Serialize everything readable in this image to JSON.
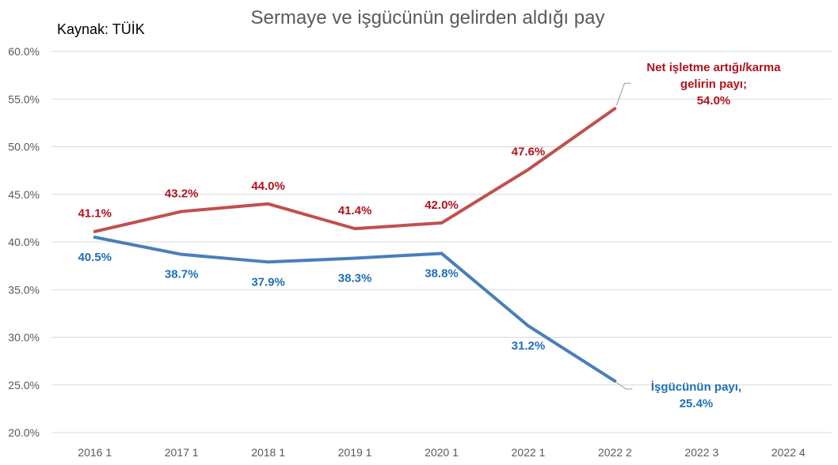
{
  "chart_data": {
    "type": "line",
    "title": "Sermaye ve işgücünün gelirden aldığı pay",
    "source": "Kaynak: TÜİK",
    "categories": [
      "2016 1",
      "2017 1",
      "2018 1",
      "2019 1",
      "2020 1",
      "2022 1",
      "2022 2",
      "2022 3",
      "2022 4"
    ],
    "ylim": [
      20,
      60
    ],
    "ytick_labels": [
      "20.0%",
      "25.0%",
      "30.0%",
      "35.0%",
      "40.0%",
      "45.0%",
      "50.0%",
      "55.0%",
      "60.0%"
    ],
    "grid": true,
    "series": [
      {
        "name_lines": [
          "Net işletme artığı/karma",
          "gelirin payı;",
          "54.0%"
        ],
        "color": "#c0504d",
        "label_color": "#b2121b",
        "values": [
          41.1,
          43.2,
          44.0,
          41.4,
          42.0,
          47.6,
          54.0,
          null,
          null
        ],
        "labels": [
          "41.1%",
          "43.2%",
          "44.0%",
          "41.4%",
          "42.0%",
          "47.6%",
          null,
          null,
          null
        ]
      },
      {
        "name_lines": [
          "İşgücünün payı,",
          "25.4%"
        ],
        "color": "#4a7ebb",
        "label_color": "#1f6fb5",
        "values": [
          40.5,
          38.7,
          37.9,
          38.3,
          38.8,
          31.2,
          25.4,
          null,
          null
        ],
        "labels": [
          "40.5%",
          "38.7%",
          "37.9%",
          "38.3%",
          "38.8%",
          "31.2%",
          null,
          null,
          null
        ]
      }
    ]
  }
}
